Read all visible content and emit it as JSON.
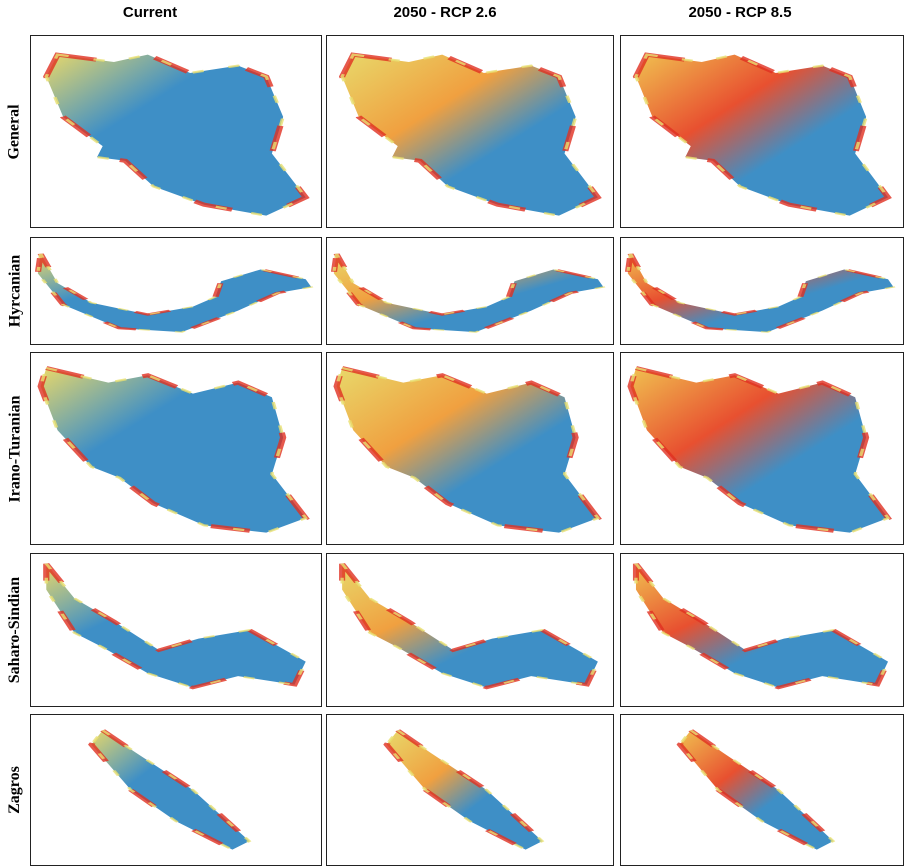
{
  "columns": [
    "Current",
    "2050 - RCP 2.6",
    "2050 - RCP 8.5"
  ],
  "rows": [
    "General",
    "Hyrcanian",
    "Irano-Turanian",
    "Saharo-Sindian",
    "Zagros"
  ]
}
